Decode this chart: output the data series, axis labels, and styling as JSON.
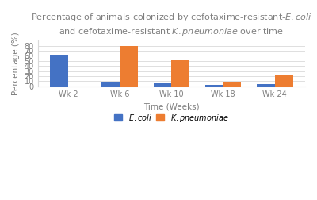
{
  "title": "Percentage of animals colonized by cefotaxime-resistant-$\\it{E. coli}$\nand cefotaxime-resistant $\\it{K. pneumoniae}$ over time",
  "xlabel": "Time (Weeks)",
  "ylabel": "Percentage (%)",
  "categories": [
    "Wk 2",
    "Wk 6",
    "Wk 10",
    "Wk 18",
    "Wk 24"
  ],
  "ecoli_values": [
    62,
    9,
    6,
    3,
    4
  ],
  "kpneu_values": [
    0,
    80,
    51,
    9,
    22
  ],
  "ecoli_color": "#4472C4",
  "kpneu_color": "#ED7D31",
  "ylim": [
    0,
    90
  ],
  "yticks": [
    0,
    10,
    20,
    30,
    40,
    50,
    60,
    70,
    80
  ],
  "legend_ecoli": "$\\it{E. coli}$",
  "legend_kpneu": "$\\it{K.pneumoniae}$",
  "bar_width": 0.35,
  "title_color": "#7F7F7F",
  "axis_color": "#7F7F7F",
  "grid_color": "#D9D9D9",
  "title_fontsize": 8.0,
  "label_fontsize": 7.5,
  "tick_fontsize": 7.0,
  "legend_fontsize": 7.0
}
